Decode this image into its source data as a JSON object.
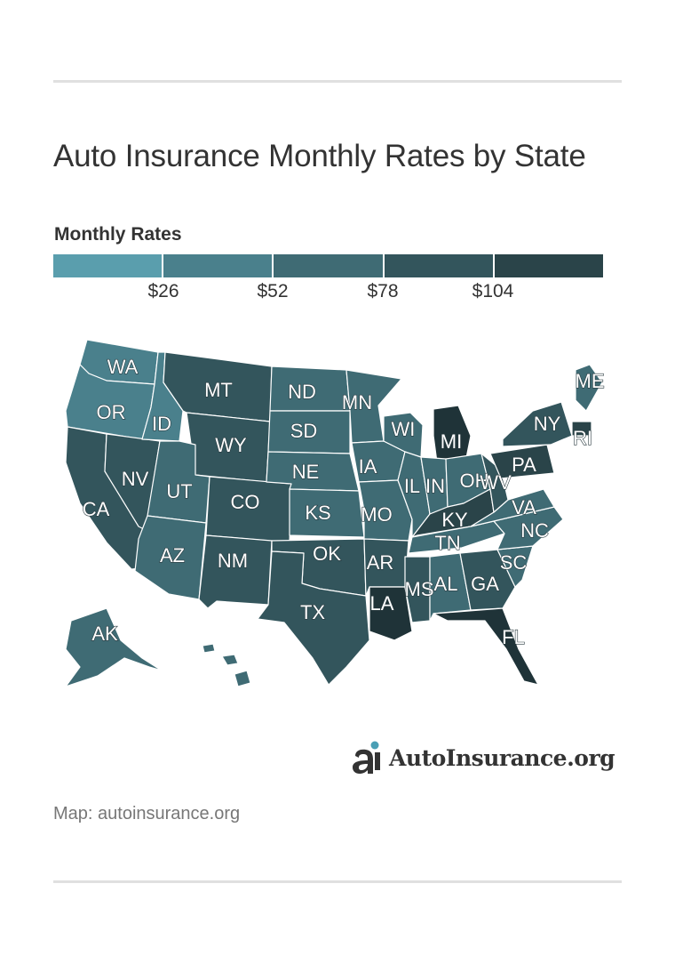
{
  "title": "Auto Insurance Monthly Rates by State",
  "legend": {
    "title": "Monthly Rates",
    "ticks": [
      "$26",
      "$52",
      "$78",
      "$104"
    ],
    "colors": [
      "#5a9ead",
      "#4a808c",
      "#3f6b74",
      "#33555c",
      "#2a4449",
      "#1f3338"
    ]
  },
  "map": {
    "states": [
      {
        "abbr": "WA",
        "bin": 1
      },
      {
        "abbr": "OR",
        "bin": 1
      },
      {
        "abbr": "CA",
        "bin": 3
      },
      {
        "abbr": "NV",
        "bin": 3
      },
      {
        "abbr": "ID",
        "bin": 1
      },
      {
        "abbr": "MT",
        "bin": 3
      },
      {
        "abbr": "WY",
        "bin": 3
      },
      {
        "abbr": "UT",
        "bin": 2
      },
      {
        "abbr": "AZ",
        "bin": 2
      },
      {
        "abbr": "CO",
        "bin": 3
      },
      {
        "abbr": "NM",
        "bin": 3
      },
      {
        "abbr": "ND",
        "bin": 2
      },
      {
        "abbr": "SD",
        "bin": 2
      },
      {
        "abbr": "NE",
        "bin": 2
      },
      {
        "abbr": "KS",
        "bin": 2
      },
      {
        "abbr": "OK",
        "bin": 3
      },
      {
        "abbr": "TX",
        "bin": 3
      },
      {
        "abbr": "MN",
        "bin": 2
      },
      {
        "abbr": "IA",
        "bin": 2
      },
      {
        "abbr": "MO",
        "bin": 2
      },
      {
        "abbr": "AR",
        "bin": 3
      },
      {
        "abbr": "LA",
        "bin": 5
      },
      {
        "abbr": "WI",
        "bin": 2
      },
      {
        "abbr": "IL",
        "bin": 2
      },
      {
        "abbr": "MI",
        "bin": 5
      },
      {
        "abbr": "IN",
        "bin": 2
      },
      {
        "abbr": "OH",
        "bin": 2
      },
      {
        "abbr": "KY",
        "bin": 4
      },
      {
        "abbr": "TN",
        "bin": 2
      },
      {
        "abbr": "MS",
        "bin": 3
      },
      {
        "abbr": "AL",
        "bin": 2
      },
      {
        "abbr": "GA",
        "bin": 3
      },
      {
        "abbr": "FL",
        "bin": 5
      },
      {
        "abbr": "SC",
        "bin": 2
      },
      {
        "abbr": "NC",
        "bin": 2
      },
      {
        "abbr": "VA",
        "bin": 2
      },
      {
        "abbr": "WV",
        "bin": 3
      },
      {
        "abbr": "PA",
        "bin": 4
      },
      {
        "abbr": "NY",
        "bin": 3
      },
      {
        "abbr": "ME",
        "bin": 2
      },
      {
        "abbr": "RI",
        "bin": 4
      },
      {
        "abbr": "AK",
        "bin": 2
      },
      {
        "abbr": "HI",
        "bin": 2
      }
    ]
  },
  "logo": {
    "icon": "autoinsurance-logo-icon",
    "text": "AutoInsurance.org"
  },
  "source": "Map: autoinsurance.org"
}
